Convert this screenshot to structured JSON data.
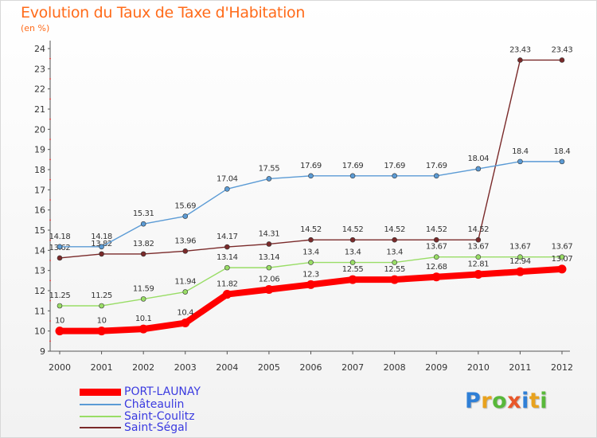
{
  "title": "Evolution du Taux de Taxe d'Habitation",
  "subtitle": "(en %)",
  "logo": {
    "text": "Proxiti",
    "colors": [
      "#2f7fd6",
      "#e8a21e",
      "#58b83a",
      "#e8572a",
      "#2f7fd6",
      "#e8a21e",
      "#58b83a"
    ]
  },
  "chart_data": {
    "type": "line",
    "categories": [
      "2000",
      "2001",
      "2002",
      "2003",
      "2004",
      "2005",
      "2006",
      "2007",
      "2008",
      "2009",
      "2010",
      "2011",
      "2012"
    ],
    "ylim": [
      9,
      24
    ],
    "yticks": [
      "9",
      "10",
      "11",
      "12",
      "13",
      "14",
      "15",
      "16",
      "17",
      "18",
      "19",
      "20",
      "21",
      "22",
      "23",
      "24"
    ],
    "grid": false,
    "legend_position": "bottom-left",
    "series": [
      {
        "name": "PORT-LAUNAY",
        "color": "#ff0000",
        "values": [
          10,
          10,
          10.1,
          10.4,
          11.82,
          12.06,
          12.3,
          12.55,
          12.55,
          12.68,
          12.81,
          12.94,
          13.07
        ],
        "labels": [
          "10",
          "10",
          "10.1",
          "10.4",
          "11.82",
          "12.06",
          "12.3",
          "12.55",
          "12.55",
          "12.68",
          "12.81",
          "12.94",
          "13.07"
        ]
      },
      {
        "name": "Châteaulin",
        "color": "#5b9bd5",
        "values": [
          14.18,
          14.18,
          15.31,
          15.69,
          17.04,
          17.55,
          17.69,
          17.69,
          17.69,
          17.69,
          18.04,
          18.4,
          18.4
        ],
        "labels": [
          "14.18",
          "14.18",
          "15.31",
          "15.69",
          "17.04",
          "17.55",
          "17.69",
          "17.69",
          "17.69",
          "17.69",
          "18.04",
          "18.4",
          "18.4"
        ]
      },
      {
        "name": "Saint-Coulitz",
        "color": "#99dd66",
        "values": [
          11.25,
          11.25,
          11.59,
          11.94,
          13.14,
          13.14,
          13.4,
          13.4,
          13.4,
          13.67,
          13.67,
          13.67,
          13.67
        ],
        "labels": [
          "11.25",
          "11.25",
          "11.59",
          "11.94",
          "13.14",
          "13.14",
          "13.4",
          "13.4",
          "13.4",
          "13.67",
          "13.67",
          "13.67",
          "13.67"
        ]
      },
      {
        "name": "Saint-Ségal",
        "color": "#7a2a2a",
        "values": [
          13.62,
          13.82,
          13.82,
          13.96,
          14.17,
          14.31,
          14.52,
          14.52,
          14.52,
          14.52,
          14.52,
          23.43,
          23.43
        ],
        "labels": [
          "13.62",
          "13.82",
          "13.82",
          "13.96",
          "14.17",
          "14.31",
          "14.52",
          "14.52",
          "14.52",
          "14.52",
          "14.52",
          "23.43",
          "23.43"
        ]
      }
    ]
  }
}
